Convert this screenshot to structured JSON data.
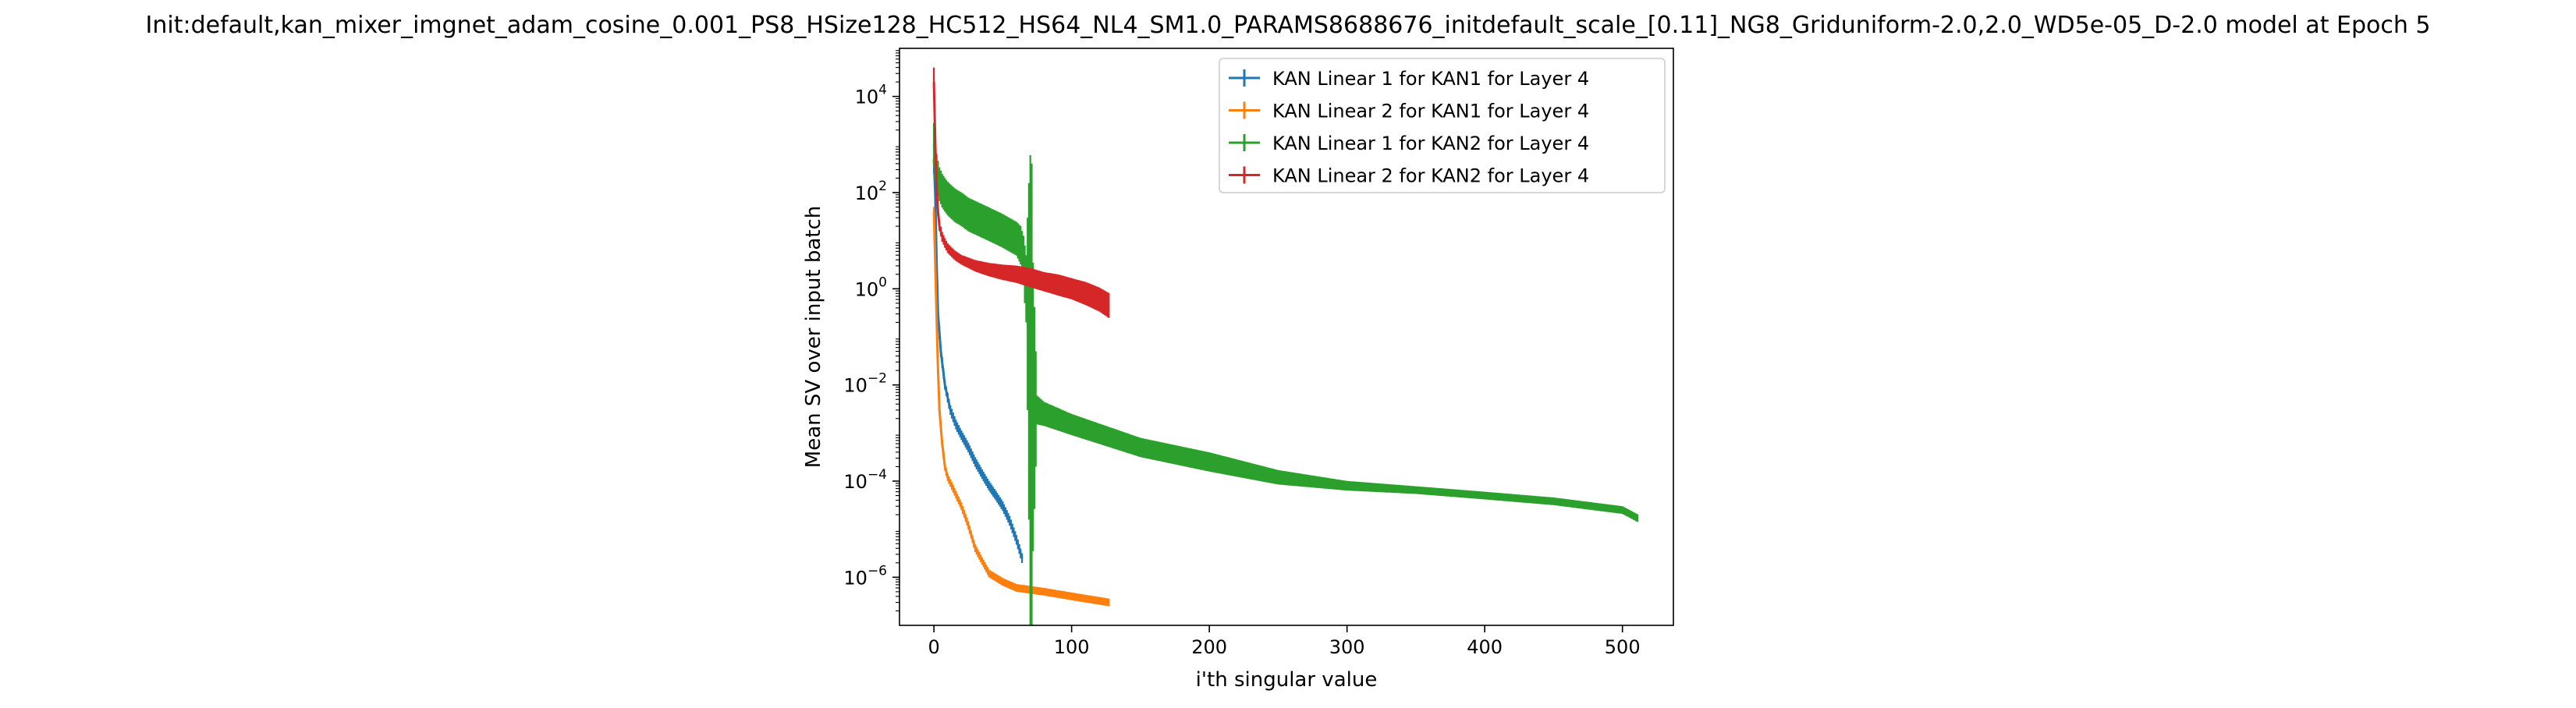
{
  "chart_data": {
    "type": "line",
    "title": "Init:default,kan_mixer_imgnet_adam_cosine_0.001_PS8_HSize128_HC512_HS64_NL4_SM1.0_PARAMS8688676_initdefault_scale_[0.11]_NG8_Griduniform-2.0,2.0_WD5e-05_D-2.0 model at Epoch 5",
    "xlabel": "i'th singular value",
    "ylabel": "Mean SV over input batch",
    "xscale": "linear",
    "yscale": "log",
    "xlim": [
      -25,
      537
    ],
    "ylim": [
      1e-07,
      100000
    ],
    "xticks": [
      0,
      100,
      200,
      300,
      400,
      500
    ],
    "xtick_labels": [
      "0",
      "100",
      "200",
      "300",
      "400",
      "500"
    ],
    "yticks": [
      1e-06,
      0.0001,
      0.01,
      1,
      100,
      10000
    ],
    "ytick_labels": [
      {
        "base": "10",
        "exp": "−6"
      },
      {
        "base": "10",
        "exp": "−4"
      },
      {
        "base": "10",
        "exp": "−2"
      },
      {
        "base": "10",
        "exp": "0"
      },
      {
        "base": "10",
        "exp": "2"
      },
      {
        "base": "10",
        "exp": "4"
      }
    ],
    "grid": false,
    "legend_position": "top-right",
    "series": [
      {
        "name": "KAN Linear 1 for KAN1 for Layer 4",
        "color": "#1f77b4",
        "x": [
          0,
          1,
          2,
          3,
          5,
          8,
          12,
          16,
          20,
          25,
          30,
          35,
          40,
          45,
          50,
          55,
          60,
          64
        ],
        "y": [
          500,
          80,
          3,
          0.3,
          0.05,
          0.01,
          0.003,
          0.0015,
          0.0009,
          0.0005,
          0.00025,
          0.00014,
          8e-05,
          5e-05,
          3e-05,
          1.5e-05,
          6e-06,
          2.5e-06
        ],
        "err": [
          0.3,
          0.25,
          0.2,
          0.15,
          0.12,
          0.1,
          0.1,
          0.1,
          0.1,
          0.1,
          0.1,
          0.1,
          0.1,
          0.1,
          0.1,
          0.1,
          0.1,
          0.1
        ]
      },
      {
        "name": "KAN Linear 2 for KAN1 for Layer 4",
        "color": "#ff7f0e",
        "x": [
          0,
          1,
          2,
          3,
          4,
          6,
          8,
          10,
          15,
          20,
          25,
          30,
          40,
          50,
          60,
          80,
          100,
          127
        ],
        "y": [
          40,
          3,
          0.2,
          0.02,
          0.003,
          0.0006,
          0.0002,
          0.00012,
          6e-05,
          3e-05,
          1.2e-05,
          4e-06,
          1.2e-06,
          8e-07,
          6e-07,
          5e-07,
          4e-07,
          3e-07
        ],
        "err": [
          0.1,
          0.1,
          0.08,
          0.08,
          0.08,
          0.08,
          0.08,
          0.08,
          0.08,
          0.08,
          0.08,
          0.08,
          0.08,
          0.08,
          0.08,
          0.08,
          0.08,
          0.08
        ]
      },
      {
        "name": "KAN Linear 1 for KAN2 for Layer 4",
        "color": "#2ca02c",
        "x": [
          0,
          1,
          2,
          4,
          6,
          8,
          10,
          15,
          20,
          25,
          30,
          40,
          50,
          60,
          63,
          65,
          67,
          68,
          69,
          70,
          71,
          72,
          75,
          80,
          100,
          150,
          200,
          250,
          300,
          350,
          400,
          450,
          500,
          511
        ],
        "y": [
          1000,
          500,
          250,
          150,
          110,
          90,
          75,
          55,
          45,
          35,
          30,
          22,
          16,
          11,
          8,
          4,
          1,
          0.3,
          0.05,
          0.006,
          0.004,
          0.0035,
          0.003,
          0.0025,
          0.0015,
          0.0005,
          0.00025,
          0.00012,
          8e-05,
          6.5e-05,
          5e-05,
          3.8e-05,
          2.5e-05,
          1.7e-05
        ],
        "err": [
          0.45,
          0.45,
          0.4,
          0.35,
          0.35,
          0.35,
          0.35,
          0.35,
          0.35,
          0.35,
          0.35,
          0.35,
          0.35,
          0.35,
          0.4,
          0.5,
          0.7,
          2.0,
          3.5,
          5.0,
          5.0,
          3.0,
          0.3,
          0.25,
          0.22,
          0.2,
          0.2,
          0.15,
          0.1,
          0.08,
          0.08,
          0.08,
          0.08,
          0.08
        ]
      },
      {
        "name": "KAN Linear 2 for KAN2 for Layer 4",
        "color": "#d62728",
        "x": [
          0,
          1,
          2,
          3,
          4,
          6,
          8,
          10,
          15,
          20,
          30,
          40,
          50,
          60,
          70,
          80,
          90,
          100,
          110,
          120,
          127
        ],
        "y": [
          20000,
          1000,
          120,
          40,
          20,
          12,
          9,
          7,
          5,
          4,
          3,
          2.5,
          2.2,
          2.0,
          1.7,
          1.4,
          1.2,
          1.0,
          0.8,
          0.6,
          0.45
        ],
        "err": [
          0.3,
          0.2,
          0.15,
          0.1,
          0.1,
          0.1,
          0.1,
          0.1,
          0.1,
          0.1,
          0.12,
          0.14,
          0.16,
          0.18,
          0.2,
          0.2,
          0.22,
          0.22,
          0.24,
          0.25,
          0.26
        ]
      }
    ]
  }
}
